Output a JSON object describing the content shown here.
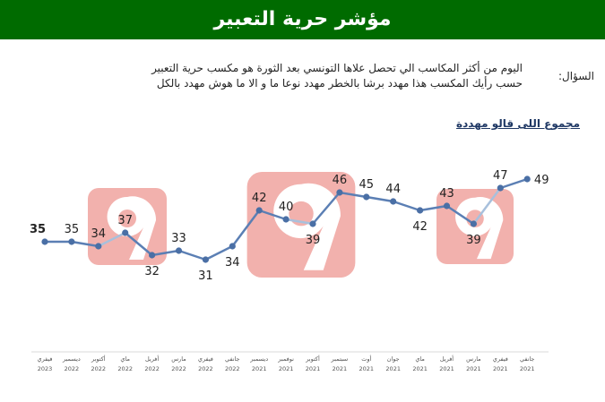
{
  "header": {
    "title": "مؤشر حرية التعبير"
  },
  "question": {
    "label": "السؤال:",
    "line1": "اليوم من أكثر المكاسب الي تحصل علاها التونسي بعد الثورة هو مكسب حرية التعبير",
    "line2": "حسب رأيك المكسب هذا مهدد برشا بالخطر مهدد نوعا ما و الا ما هوش مهدد بالكل"
  },
  "chart_data": {
    "type": "line",
    "title": "مجموع اللى قالو مهددة",
    "categories": [
      [
        "فيفري",
        "2023"
      ],
      [
        "ديسمبر",
        "2022"
      ],
      [
        "أكتوبر",
        "2022"
      ],
      [
        "ماي",
        "2022"
      ],
      [
        "أفريل",
        "2022"
      ],
      [
        "مارس",
        "2022"
      ],
      [
        "فيفري",
        "2022"
      ],
      [
        "جانفي",
        "2022"
      ],
      [
        "ديسمبر",
        "2021"
      ],
      [
        "نوفمبر",
        "2021"
      ],
      [
        "أكتوبر",
        "2021"
      ],
      [
        "سبتمبر",
        "2021"
      ],
      [
        "أوت",
        "2021"
      ],
      [
        "جوان",
        "2021"
      ],
      [
        "ماي",
        "2021"
      ],
      [
        "أفريل",
        "2021"
      ],
      [
        "مارس",
        "2021"
      ],
      [
        "فيفري",
        "2021"
      ],
      [
        "جانفي",
        "2021"
      ]
    ],
    "values": [
      35,
      35,
      34,
      37,
      32,
      33,
      31,
      34,
      42,
      40,
      39,
      46,
      45,
      44,
      42,
      43,
      39,
      47,
      49
    ],
    "ylim": [
      25,
      55
    ],
    "highlighted_first_label": true,
    "colors": {
      "line": "#5b7fb4",
      "marker": "#4a6fa5",
      "highlight_segment": "#a8c0dc",
      "label": "#222222"
    }
  },
  "watermark": {
    "icon": "logo-9-icon"
  }
}
